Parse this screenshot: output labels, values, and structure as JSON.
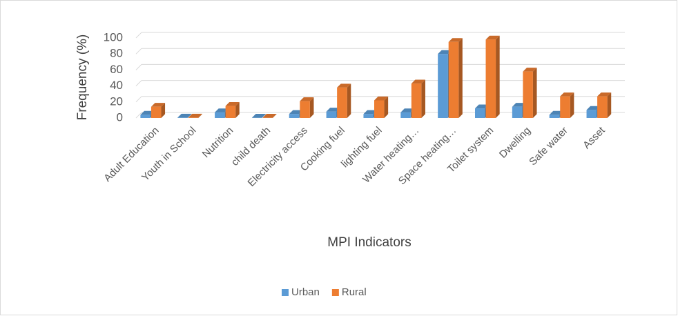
{
  "chart_data": {
    "type": "bar3d",
    "categories": [
      "Adult Education",
      "Youth in School",
      "Nutrition",
      "child death",
      "Electricity access",
      "Cooking fuel",
      "lighting fuel",
      "Water heating…",
      "Space heating…",
      "Toilet system",
      "Dwelling",
      "Safe water",
      "Asset"
    ],
    "series": [
      {
        "name": "Urban",
        "color": "#5b9bd5",
        "values": [
          4,
          0.5,
          7,
          0.3,
          5,
          8,
          5,
          7,
          80,
          12,
          14,
          4,
          10
        ]
      },
      {
        "name": "Rural",
        "color": "#ed7d31",
        "values": [
          14,
          0.5,
          15,
          0.3,
          21,
          38,
          22,
          43,
          95,
          98,
          58,
          27,
          27
        ]
      }
    ],
    "ylim": [
      0,
      100
    ],
    "yticks": [
      0,
      20,
      40,
      60,
      80,
      100
    ],
    "grid": true,
    "y_label": "Frequency (%)",
    "x_label": "MPI Indicators",
    "legend": "bottom"
  }
}
